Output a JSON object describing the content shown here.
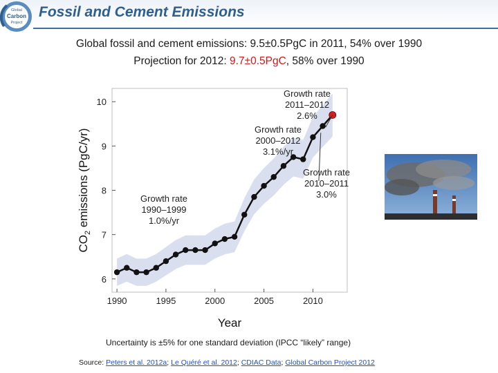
{
  "slide": {
    "title": "Fossil and Cement Emissions",
    "subtitle_line1": "Global fossil and cement emissions: 9.5±0.5PgC in 2011, 54% over 1990",
    "subtitle_line2_prefix": "Projection for 2012: ",
    "subtitle_line2_highlight": "9.7±0.5PgC",
    "subtitle_line2_suffix": ", 58% over 1990",
    "uncertainty_note": "Uncertainty is ±5% for one standard deviation (IPCC “likely” range)",
    "source_prefix": "Source: ",
    "source_links": [
      "Peters et al. 2012a",
      "Le Quéré et al. 2012",
      "CDIAC Data",
      "Global Carbon Project 2012"
    ],
    "source_separators": [
      "; ",
      "; ",
      "; "
    ],
    "logo_text": [
      "Global",
      "Carbon",
      "Project"
    ]
  },
  "colors": {
    "title": "#2f5f8f",
    "line": "#111111",
    "band": "#d4d9ec",
    "projection": "#d42020",
    "highlight_text": "#cc1a1a",
    "link": "#1a4fd0"
  },
  "chart_data": {
    "type": "line",
    "title": "",
    "xlabel": "Year",
    "ylabel_main": "CO",
    "ylabel_sub": "2",
    "ylabel_rest": " emissions (PgC/yr)",
    "xlim": [
      1989.5,
      2013.5
    ],
    "ylim": [
      5.7,
      10.3
    ],
    "xticks": [
      1990,
      1995,
      2000,
      2005,
      2010
    ],
    "yticks": [
      6,
      7,
      8,
      9,
      10
    ],
    "x": [
      1990,
      1991,
      1992,
      1993,
      1994,
      1995,
      1996,
      1997,
      1998,
      1999,
      2000,
      2001,
      2002,
      2003,
      2004,
      2005,
      2006,
      2007,
      2008,
      2009,
      2010,
      2011
    ],
    "values": [
      6.15,
      6.25,
      6.15,
      6.15,
      6.25,
      6.4,
      6.55,
      6.65,
      6.65,
      6.65,
      6.8,
      6.9,
      6.95,
      7.45,
      7.85,
      8.1,
      8.3,
      8.55,
      8.75,
      8.7,
      9.2,
      9.45
    ],
    "uncertainty_fraction": 0.05,
    "projection": {
      "x": 2012,
      "value": 9.7
    },
    "annotations": [
      {
        "lines": [
          "Growth rate",
          "1990–1999",
          "1.0%/yr"
        ]
      },
      {
        "lines": [
          "Growth rate",
          "2000–2012",
          "3.1%/yr"
        ]
      },
      {
        "lines": [
          "Growth rate",
          "2011–2012",
          "2.6%"
        ]
      },
      {
        "lines": [
          "Growth rate",
          "2010–2011",
          "3.0%"
        ]
      }
    ]
  }
}
